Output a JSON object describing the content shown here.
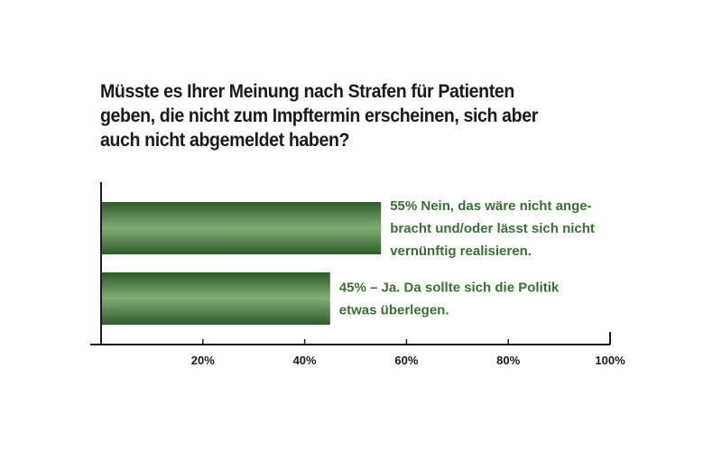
{
  "title_lines": [
    "Müsste es Ihrer Meinung nach Strafen für Patienten",
    "geben, die nicht zum Impftermin erscheinen, sich aber",
    "auch nicht abgemeldet haben?"
  ],
  "colors": {
    "bar_dark": "#2f5a2b",
    "bar_light": "#7fae74",
    "label_text": "#3b6e35",
    "axis": "#1a1a1a"
  },
  "chart_data": {
    "type": "bar",
    "orientation": "horizontal",
    "title": "Müsste es Ihrer Meinung nach Strafen für Patienten geben, die nicht zum Impftermin erscheinen, sich aber auch nicht abgemeldet haben?",
    "categories": [
      "55% Nein, das wäre nicht angebracht und/oder lässt sich nicht vernünftig realisieren.",
      "45% – Ja. Da sollte sich die Politik etwas überlegen."
    ],
    "values": [
      55,
      45
    ],
    "bar_label_lines": [
      [
        "55% Nein, das wäre nicht ange-",
        "bracht und/oder lässt sich nicht",
        "vernünftig realisieren."
      ],
      [
        "45% – Ja. Da sollte sich die Politik",
        "etwas überlegen."
      ]
    ],
    "xlim": [
      0,
      100
    ],
    "xticks": [
      20,
      40,
      60,
      80,
      100
    ],
    "xtick_labels": [
      "20%",
      "40%",
      "60%",
      "80%",
      "100%"
    ],
    "grid": false,
    "legend": "none"
  }
}
